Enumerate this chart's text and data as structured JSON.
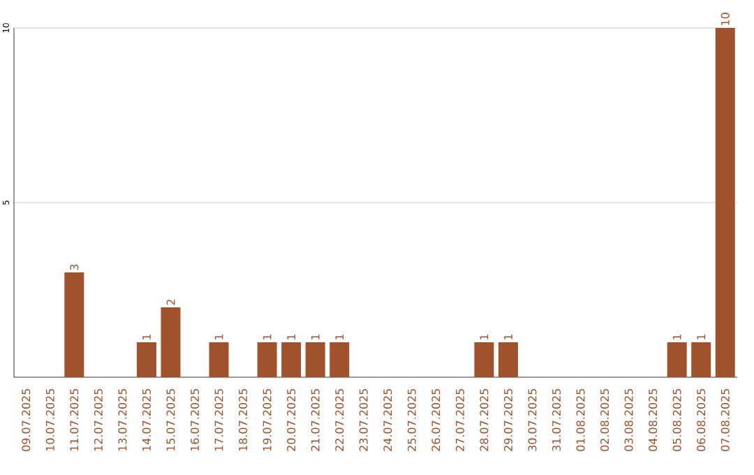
{
  "chart_data": {
    "type": "bar",
    "categories": [
      "09.07.2025",
      "10.07.2025",
      "11.07.2025",
      "12.07.2025",
      "13.07.2025",
      "14.07.2025",
      "15.07.2025",
      "16.07.2025",
      "17.07.2025",
      "18.07.2025",
      "19.07.2025",
      "20.07.2025",
      "21.07.2025",
      "22.07.2025",
      "23.07.2025",
      "24.07.2025",
      "25.07.2025",
      "26.07.2025",
      "27.07.2025",
      "28.07.2025",
      "29.07.2025",
      "30.07.2025",
      "31.07.2025",
      "01.08.2025",
      "02.08.2025",
      "03.08.2025",
      "04.08.2025",
      "05.08.2025",
      "06.08.2025",
      "07.08.2025"
    ],
    "values": [
      0,
      0,
      3,
      0,
      0,
      1,
      2,
      0,
      1,
      0,
      1,
      1,
      1,
      1,
      0,
      0,
      0,
      0,
      0,
      1,
      1,
      0,
      0,
      0,
      0,
      0,
      0,
      1,
      1,
      10
    ],
    "value_labels": [
      null,
      null,
      "3",
      null,
      null,
      "1",
      "2",
      null,
      "1",
      null,
      "1",
      "1",
      "1",
      "1",
      null,
      null,
      null,
      null,
      null,
      "1",
      "1",
      null,
      null,
      null,
      null,
      null,
      null,
      "1",
      "1",
      "10"
    ],
    "color": "#a0522d",
    "ylim": [
      0,
      10
    ],
    "yticks": [
      5,
      10
    ],
    "grid": "y"
  }
}
